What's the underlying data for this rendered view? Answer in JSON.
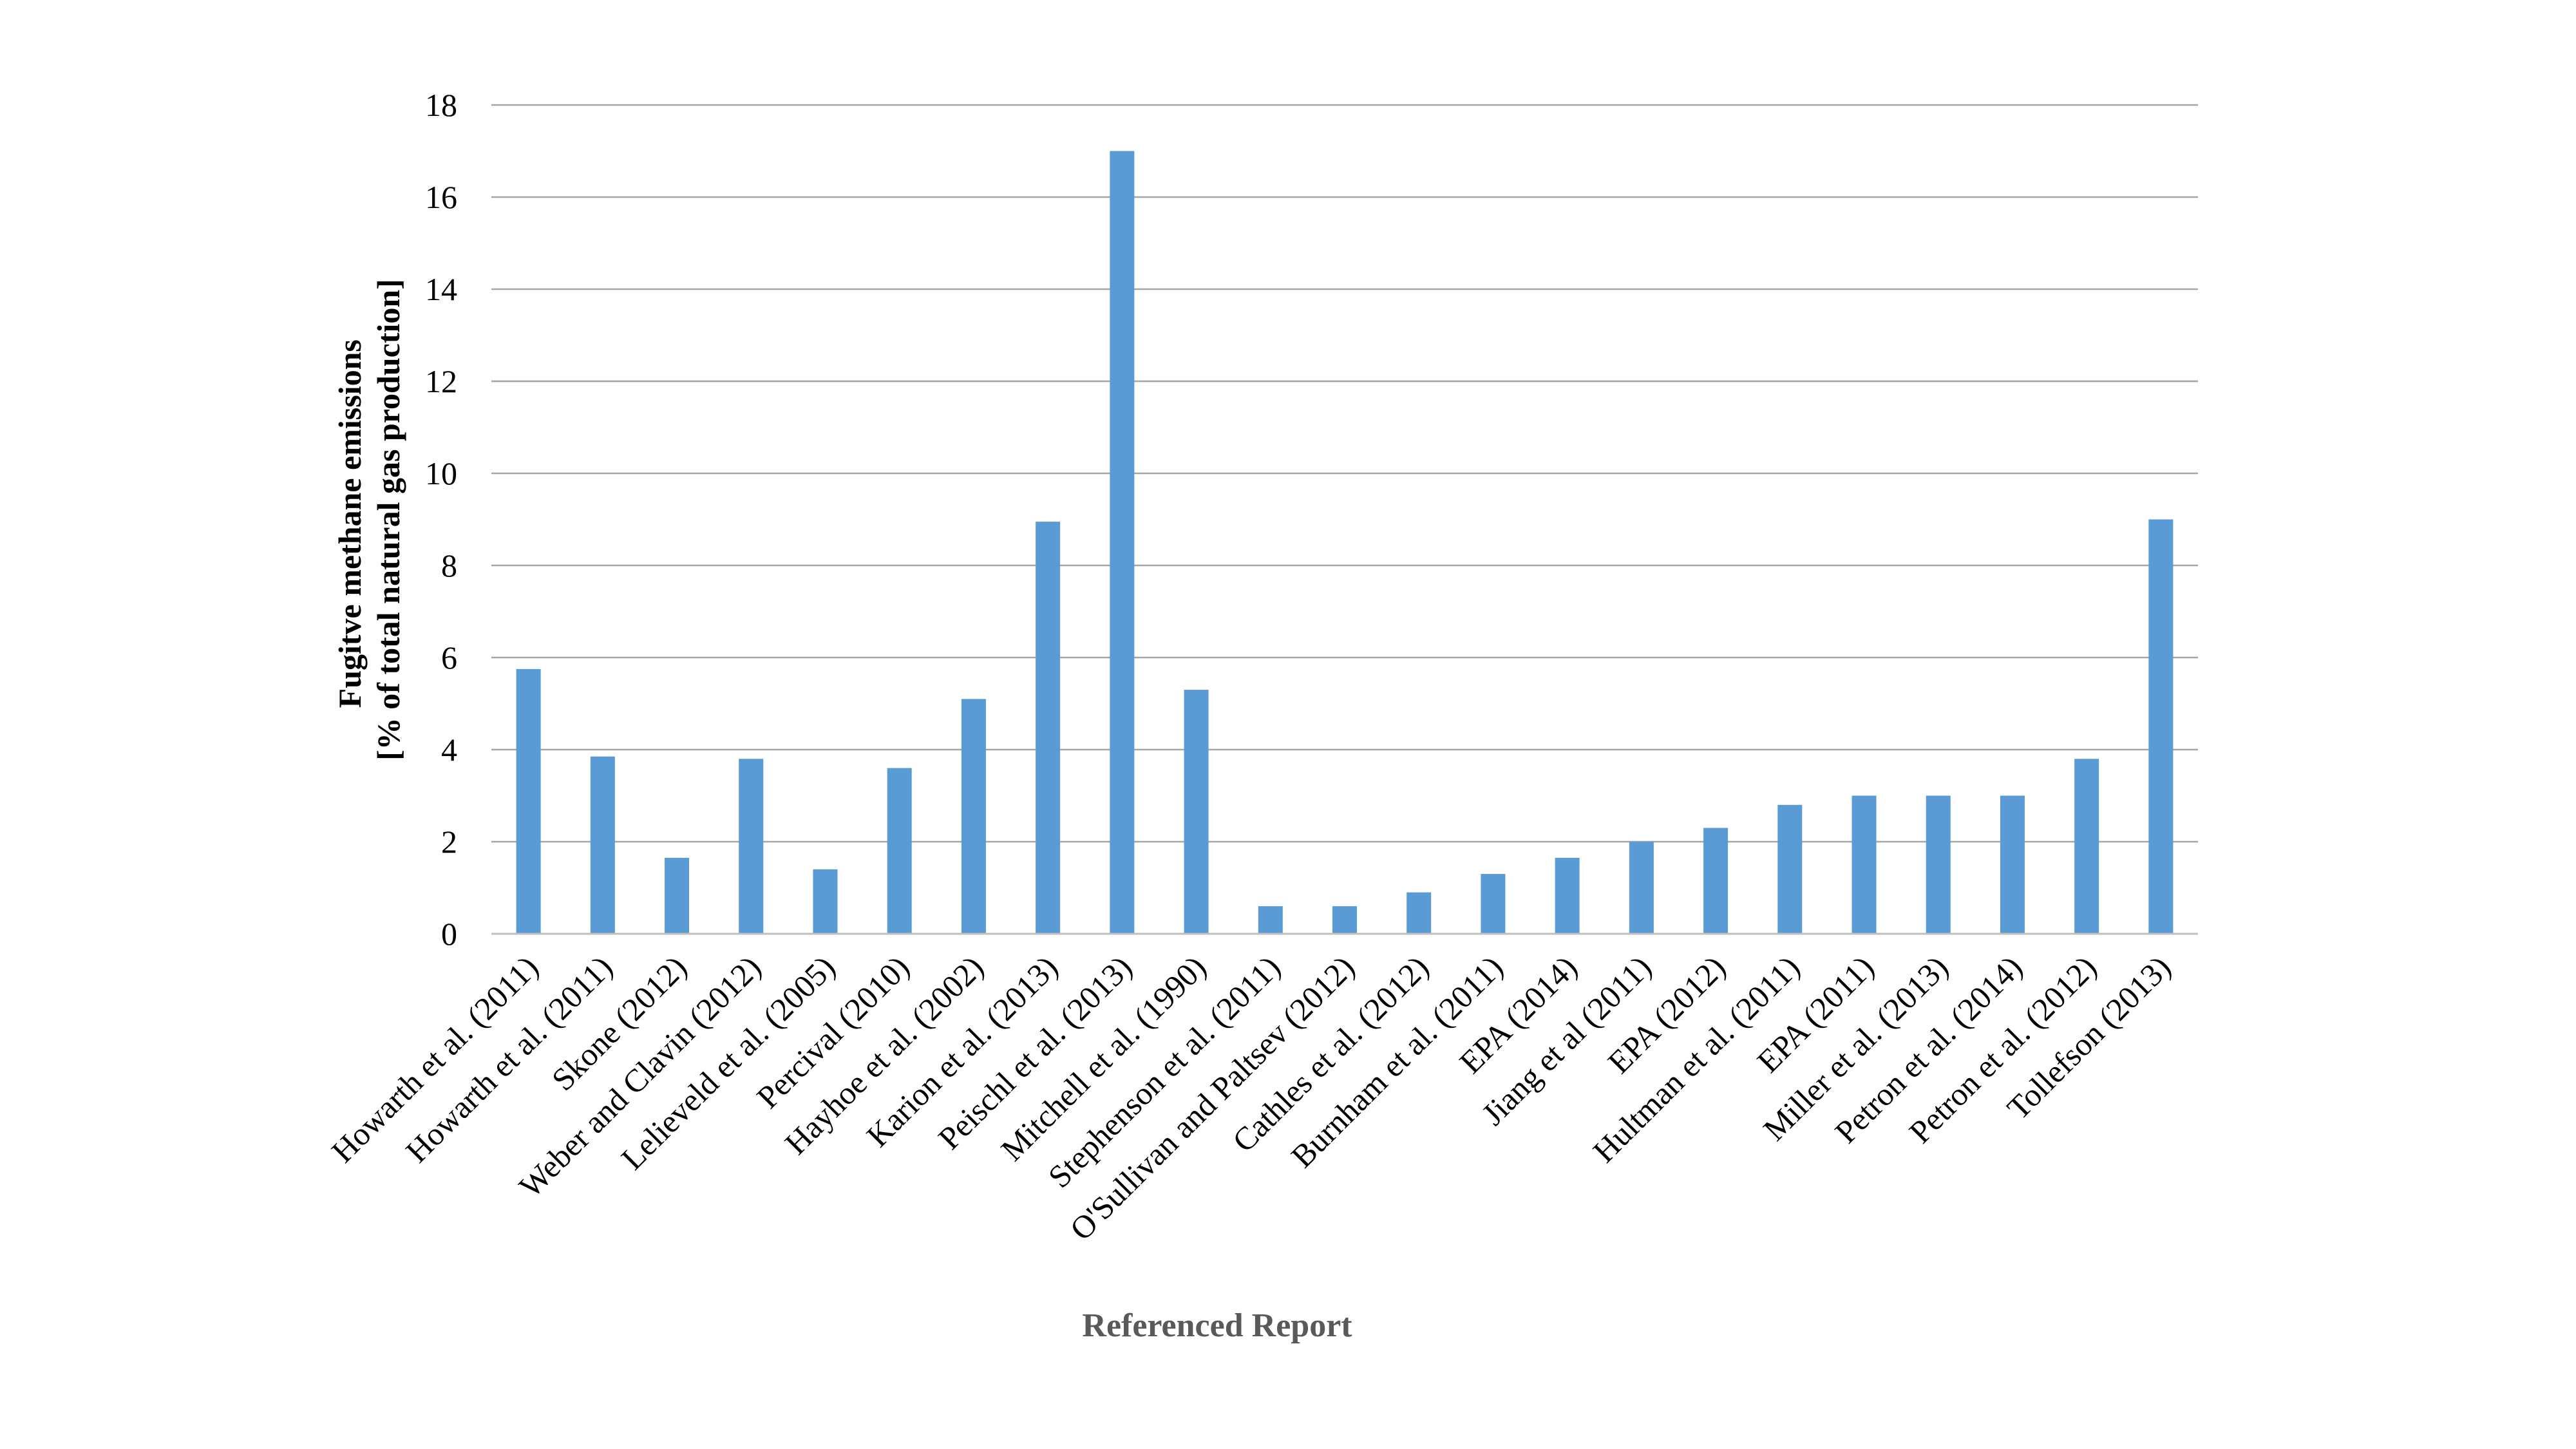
{
  "chart_data": {
    "type": "bar",
    "title": "",
    "xlabel": "Referenced Report",
    "ylabel_lines": [
      "Fugitve methane emissions",
      "[% of total natural  gas production]"
    ],
    "ylim": [
      0,
      18
    ],
    "yticks": [
      0,
      2,
      4,
      6,
      8,
      10,
      12,
      14,
      16,
      18
    ],
    "grid": true,
    "legend": "none",
    "bar_color": "#5B9BD5",
    "categories": [
      "Howarth et al. (2011)",
      "Howarth et al. (2011)",
      "Skone (2012)",
      "Weber and Clavin (2012)",
      "Lelieveld et al. (2005)",
      "Percival (2010)",
      "Hayhoe et al. (2002)",
      "Karion et al. (2013)",
      "Peischl et al. (2013)",
      "Mitchell et al. (1990)",
      "Stephenson et al. (2011)",
      "O'Sullivan and Paltsev (2012)",
      "Cathles et al. (2012)",
      "Burnham et al. (2011)",
      "EPA (2014)",
      "Jiang et al (2011)",
      "EPA (2012)",
      "Hultman et al. (2011)",
      "EPA (2011)",
      "Miller et al. (2013)",
      "Petron et al. (2014)",
      "Petron et al. (2012)",
      "Tollefson (2013)"
    ],
    "values": [
      5.75,
      3.85,
      1.65,
      3.8,
      1.4,
      3.6,
      5.1,
      8.95,
      17.0,
      5.3,
      0.6,
      0.6,
      0.9,
      1.3,
      1.65,
      2.0,
      2.3,
      2.8,
      3.0,
      3.0,
      3.0,
      3.8,
      9.0
    ]
  }
}
